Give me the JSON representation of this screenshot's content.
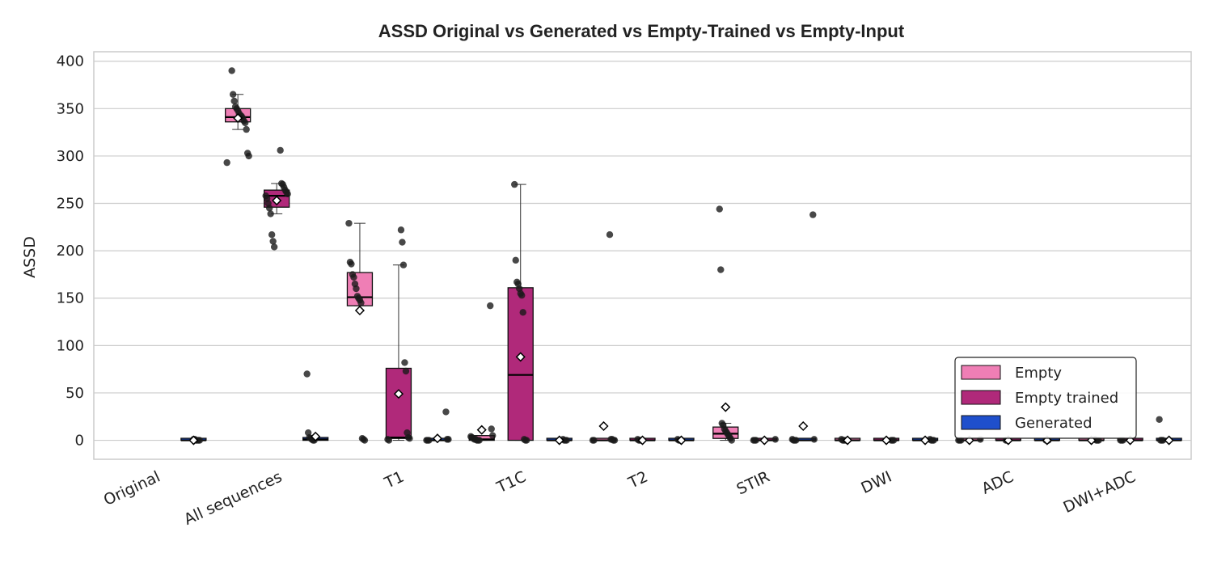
{
  "chart_data": {
    "type": "box",
    "title": "ASSD Original vs Generated vs Empty-Trained vs Empty-Input",
    "xlabel": "",
    "ylabel": "ASSD",
    "ylim": [
      -20,
      410
    ],
    "yticks": [
      0,
      50,
      100,
      150,
      200,
      250,
      300,
      350,
      400
    ],
    "grid": true,
    "legend_position": "lower-right",
    "categories": [
      "Original",
      "All sequences",
      "T1",
      "T1C",
      "T2",
      "STIR",
      "DWI",
      "ADC",
      "DWI+ADC"
    ],
    "series": [
      {
        "name": "Empty",
        "color": "#ef7eb5",
        "boxes": [
          {
            "category": "All sequences",
            "q1": 336,
            "median": 341,
            "q3": 350,
            "whisker_low": 328,
            "whisker_high": 365,
            "mean": 340,
            "points": [
              293,
              300,
              303,
              328,
              335,
              337,
              340,
              342,
              343,
              345,
              348,
              350,
              352,
              358,
              365,
              390
            ]
          },
          {
            "category": "T1",
            "q1": 142,
            "median": 151,
            "q3": 177,
            "whisker_low": 142,
            "whisker_high": 229,
            "mean": 137,
            "points": [
              0,
              1,
              2,
              145,
              148,
              150,
              152,
              160,
              165,
              172,
              175,
              186,
              188,
              229
            ]
          },
          {
            "category": "T1C",
            "q1": 0,
            "median": 1,
            "q3": 5,
            "whisker_low": 0,
            "whisker_high": 5,
            "mean": 11,
            "points": [
              0,
              0,
              0,
              1,
              1,
              2,
              3,
              4,
              5,
              12,
              142
            ]
          },
          {
            "category": "T2",
            "q1": 0,
            "median": 0,
            "q3": 1,
            "whisker_low": 0,
            "whisker_high": 1,
            "mean": 15,
            "points": [
              0,
              0,
              0,
              0,
              1,
              1,
              217
            ]
          },
          {
            "category": "STIR",
            "q1": 2,
            "median": 7,
            "q3": 14,
            "whisker_low": 0,
            "whisker_high": 18,
            "mean": 35,
            "points": [
              0,
              2,
              4,
              6,
              8,
              10,
              12,
              16,
              18,
              180,
              244
            ]
          },
          {
            "category": "DWI",
            "q1": 0,
            "median": 0,
            "q3": 1,
            "whisker_low": 0,
            "whisker_high": 1,
            "mean": 0,
            "points": [
              0,
              0,
              0,
              0,
              1
            ]
          },
          {
            "category": "ADC",
            "q1": 0,
            "median": 0,
            "q3": 1,
            "whisker_low": 0,
            "whisker_high": 1,
            "mean": 0,
            "points": [
              0,
              0,
              0,
              1
            ]
          },
          {
            "category": "DWI+ADC",
            "q1": 0,
            "median": 0,
            "q3": 1,
            "whisker_low": 0,
            "whisker_high": 1,
            "mean": 0,
            "points": [
              0,
              0,
              0,
              1
            ]
          }
        ]
      },
      {
        "name": "Empty trained",
        "color": "#b0297a",
        "boxes": [
          {
            "category": "All sequences",
            "q1": 246,
            "median": 258,
            "q3": 264,
            "whisker_low": 239,
            "whisker_high": 271,
            "mean": 253,
            "points": [
              204,
              210,
              217,
              239,
              245,
              250,
              255,
              258,
              260,
              262,
              264,
              267,
              270,
              271,
              306
            ]
          },
          {
            "category": "T1",
            "q1": 2,
            "median": 3,
            "q3": 76,
            "whisker_low": 0,
            "whisker_high": 185,
            "mean": 49,
            "points": [
              0,
              1,
              2,
              3,
              8,
              73,
              82,
              185,
              209,
              222
            ]
          },
          {
            "category": "T1C",
            "q1": 0,
            "median": 69,
            "q3": 161,
            "whisker_low": 0,
            "whisker_high": 270,
            "mean": 88,
            "points": [
              0,
              0,
              1,
              135,
              153,
              155,
              160,
              165,
              167,
              190,
              270
            ]
          },
          {
            "category": "T2",
            "q1": 0,
            "median": 0,
            "q3": 1,
            "whisker_low": 0,
            "whisker_high": 1,
            "mean": 0,
            "points": [
              0,
              0,
              0,
              1
            ]
          },
          {
            "category": "STIR",
            "q1": 0,
            "median": 0,
            "q3": 1,
            "whisker_low": 0,
            "whisker_high": 1,
            "mean": 0,
            "points": [
              0,
              0,
              0,
              1
            ]
          },
          {
            "category": "DWI",
            "q1": 0,
            "median": 0,
            "q3": 1,
            "whisker_low": 0,
            "whisker_high": 1,
            "mean": 0,
            "points": [
              0,
              0,
              0
            ]
          },
          {
            "category": "ADC",
            "q1": 0,
            "median": 0,
            "q3": 1,
            "whisker_low": 0,
            "whisker_high": 1,
            "mean": 0,
            "points": [
              0,
              0,
              0
            ]
          },
          {
            "category": "DWI+ADC",
            "q1": 0,
            "median": 0,
            "q3": 1,
            "whisker_low": 0,
            "whisker_high": 1,
            "mean": 0,
            "points": [
              0,
              0,
              0
            ]
          }
        ]
      },
      {
        "name": "Generated",
        "color": "#1f4fcc",
        "boxes": [
          {
            "category": "Original",
            "q1": 0,
            "median": 0,
            "q3": 1,
            "whisker_low": 0,
            "whisker_high": 1,
            "mean": 0,
            "points": [
              0,
              0,
              0,
              0,
              1,
              1
            ]
          },
          {
            "category": "All sequences",
            "q1": 0,
            "median": 1,
            "q3": 3,
            "whisker_low": 0,
            "whisker_high": 3,
            "mean": 4,
            "points": [
              0,
              0,
              1,
              2,
              3,
              8,
              70
            ]
          },
          {
            "category": "T1",
            "q1": 0,
            "median": 0,
            "q3": 1,
            "whisker_low": 0,
            "whisker_high": 1,
            "mean": 2,
            "points": [
              0,
              0,
              0,
              1,
              1,
              30
            ]
          },
          {
            "category": "T1C",
            "q1": 0,
            "median": 0,
            "q3": 1,
            "whisker_low": 0,
            "whisker_high": 1,
            "mean": 0,
            "points": [
              0,
              0,
              0,
              1
            ]
          },
          {
            "category": "T2",
            "q1": 0,
            "median": 0,
            "q3": 1,
            "whisker_low": 0,
            "whisker_high": 1,
            "mean": 0,
            "points": [
              0,
              0,
              0,
              1
            ]
          },
          {
            "category": "STIR",
            "q1": 0,
            "median": 0,
            "q3": 1,
            "whisker_low": 0,
            "whisker_high": 1,
            "mean": 15,
            "points": [
              0,
              0,
              0,
              1,
              1,
              238
            ]
          },
          {
            "category": "DWI",
            "q1": 0,
            "median": 0,
            "q3": 1,
            "whisker_low": 0,
            "whisker_high": 1,
            "mean": 0,
            "points": [
              0,
              0,
              0,
              1
            ]
          },
          {
            "category": "ADC",
            "q1": 0,
            "median": 0,
            "q3": 1,
            "whisker_low": 0,
            "whisker_high": 1,
            "mean": 0,
            "points": [
              0,
              0,
              0
            ]
          },
          {
            "category": "DWI+ADC",
            "q1": 0,
            "median": 0,
            "q3": 1,
            "whisker_low": 0,
            "whisker_high": 1,
            "mean": 0,
            "points": [
              0,
              0,
              0,
              22
            ]
          }
        ]
      }
    ]
  }
}
